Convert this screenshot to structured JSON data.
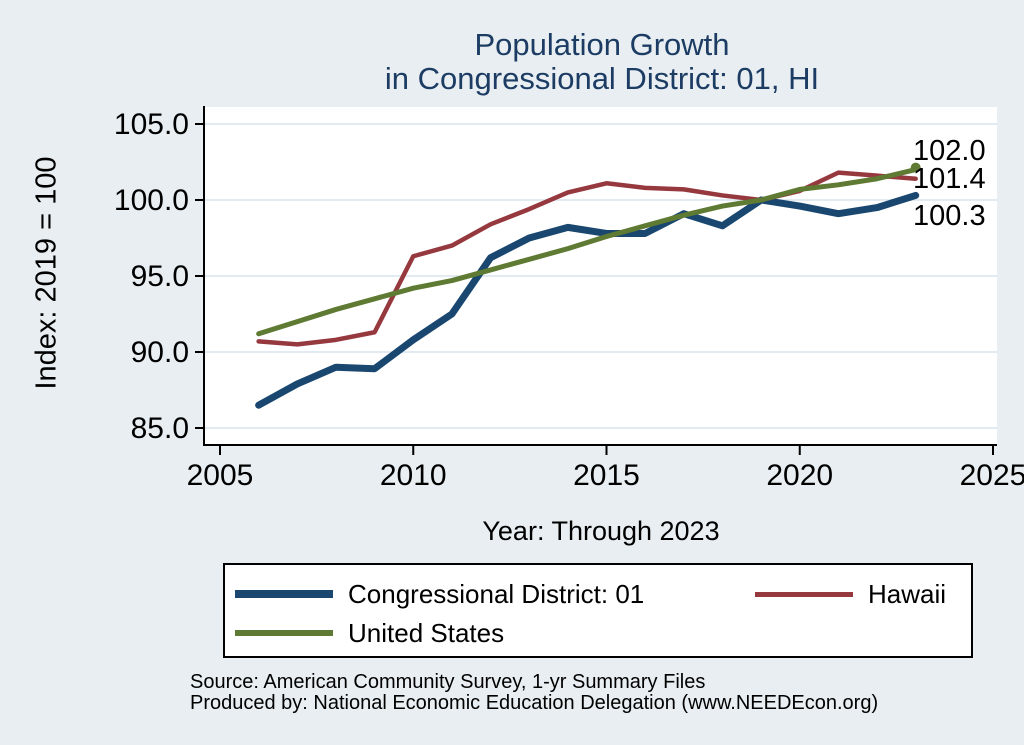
{
  "title": {
    "line1": "Population Growth",
    "line2": "in Congressional District: 01, HI"
  },
  "axes": {
    "y_title": "Index: 2019 = 100",
    "x_title": "Year: Through 2023"
  },
  "legend": {
    "items": [
      {
        "label": "Congressional District: 01",
        "color": "#1a476f"
      },
      {
        "label": "Hawaii",
        "color": "#96393f"
      },
      {
        "label": "United States",
        "color": "#5f7a33"
      }
    ]
  },
  "end_labels": [
    {
      "series": "United States",
      "text": "102.0"
    },
    {
      "series": "Hawaii",
      "text": "101.4"
    },
    {
      "series": "Congressional District: 01",
      "text": "100.3"
    }
  ],
  "footer": {
    "line1": "Source: American Community Survey, 1-yr Summary Files",
    "line2": "Produced by: National Economic Education Delegation (www.NEEDEcon.org)"
  },
  "chart_data": {
    "type": "line",
    "title": "Population Growth in Congressional District: 01, HI",
    "xlabel": "Year: Through 2023",
    "ylabel": "Index: 2019 = 100",
    "xlim": [
      2005,
      2025
    ],
    "ylim": [
      85,
      105
    ],
    "xticks": [
      2005,
      2010,
      2015,
      2020,
      2025
    ],
    "yticks": [
      85.0,
      90.0,
      95.0,
      100.0,
      105.0
    ],
    "grid": true,
    "legend_position": "bottom",
    "x": [
      2006,
      2007,
      2008,
      2009,
      2010,
      2011,
      2012,
      2013,
      2014,
      2015,
      2016,
      2017,
      2018,
      2019,
      2020,
      2021,
      2022,
      2023
    ],
    "series": [
      {
        "name": "Congressional District: 01",
        "color": "#1a476f",
        "line_width": 7,
        "values": [
          86.5,
          87.9,
          89.0,
          88.9,
          90.8,
          92.5,
          96.2,
          97.5,
          98.2,
          97.8,
          97.8,
          99.1,
          98.3,
          100.0,
          99.6,
          99.1,
          99.5,
          100.3
        ]
      },
      {
        "name": "Hawaii",
        "color": "#96393f",
        "line_width": 4.5,
        "values": [
          90.7,
          90.5,
          90.8,
          91.3,
          96.3,
          97.0,
          98.4,
          99.4,
          100.5,
          101.1,
          100.8,
          100.7,
          100.3,
          100.0,
          100.6,
          101.8,
          101.6,
          101.4
        ]
      },
      {
        "name": "United States",
        "color": "#5f7a33",
        "line_width": 5,
        "end_marker": true,
        "values": [
          91.2,
          92.0,
          92.8,
          93.5,
          94.2,
          94.7,
          95.4,
          96.1,
          96.8,
          97.6,
          98.3,
          99.0,
          99.6,
          100.0,
          100.7,
          101.0,
          101.4,
          102.0
        ]
      }
    ]
  }
}
